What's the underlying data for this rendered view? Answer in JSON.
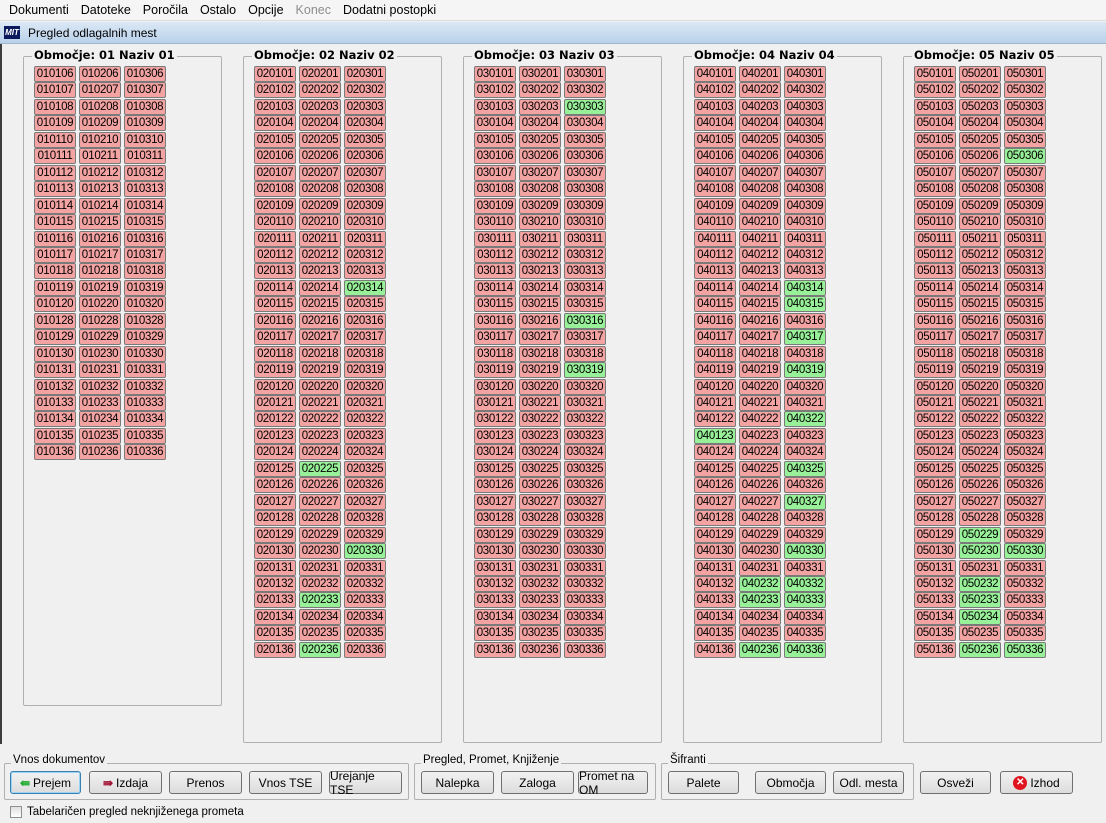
{
  "menu": [
    "Dokumenti",
    "Datoteke",
    "Poročila",
    "Ostalo",
    "Opcije",
    "Konec",
    "Dodatni postopki"
  ],
  "menu_disabled": "Konec",
  "window_title": "Pregled odlagalnih mest",
  "logo_text": "MIT",
  "colors": {
    "occupied": "#f4a3a3",
    "free": "#98f098"
  },
  "zones": [
    {
      "title": "Območje: 01 Naziv 01",
      "columns": [
        [
          "010106",
          "010107",
          "010108",
          "010109",
          "010110",
          "010111",
          "010112",
          "010113",
          "010114",
          "010115",
          "010116",
          "010117",
          "010118",
          "010119",
          "010120",
          "010128",
          "010129",
          "010130",
          "010131",
          "010132",
          "010133",
          "010134",
          "010135",
          "010136"
        ],
        [
          "010206",
          "010207",
          "010208",
          "010209",
          "010210",
          "010211",
          "010212",
          "010213",
          "010214",
          "010215",
          "010216",
          "010217",
          "010218",
          "010219",
          "010220",
          "010228",
          "010229",
          "010230",
          "010231",
          "010232",
          "010233",
          "010234",
          "010235",
          "010236"
        ],
        [
          "010306",
          "010307",
          "010308",
          "010309",
          "010310",
          "010311",
          "010312",
          "010313",
          "010314",
          "010315",
          "010316",
          "010317",
          "010318",
          "010319",
          "010320",
          "010328",
          "010329",
          "010330",
          "010331",
          "010332",
          "010333",
          "010334",
          "010335",
          "010336"
        ]
      ],
      "free": []
    },
    {
      "title": "Območje: 02 Naziv 02",
      "prefix": "02",
      "free": [
        "020314",
        "020225",
        "020330",
        "020233",
        "020236"
      ]
    },
    {
      "title": "Območje: 03 Naziv 03",
      "prefix": "03",
      "free": [
        "030303",
        "030316",
        "030319"
      ]
    },
    {
      "title": "Območje: 04 Naziv 04",
      "prefix": "04",
      "free": [
        "040314",
        "040315",
        "040317",
        "040319",
        "040322",
        "040123",
        "040325",
        "040327",
        "040330",
        "040232",
        "040332",
        "040233",
        "040333",
        "040236",
        "040336"
      ]
    },
    {
      "title": "Območje: 05 Naziv 05",
      "prefix": "05",
      "free": [
        "050306",
        "050229",
        "050230",
        "050330",
        "050232",
        "050233",
        "050234",
        "050236",
        "050336"
      ]
    }
  ],
  "groups": {
    "vnos": "Vnos dokumentov",
    "pregled": "Pregled, Promet, Knjiženje",
    "sifranti": "Šifranti"
  },
  "buttons": {
    "prejem": "Prejem",
    "izdaja": "Izdaja",
    "prenos": "Prenos",
    "vnos_tse": "Vnos TSE",
    "urejanje_tse": "Urejanje TSE",
    "nalepka": "Nalepka",
    "zaloga": "Zaloga",
    "promet_om": "Promet na OM",
    "palete": "Palete",
    "obmocja": "Območja",
    "odl_mesta": "Odl. mesta",
    "osvezi": "Osveži",
    "izhod": "Izhod"
  },
  "checkbox": {
    "label": "Tabelaričen pregled neknjiženega prometa",
    "checked": false
  }
}
